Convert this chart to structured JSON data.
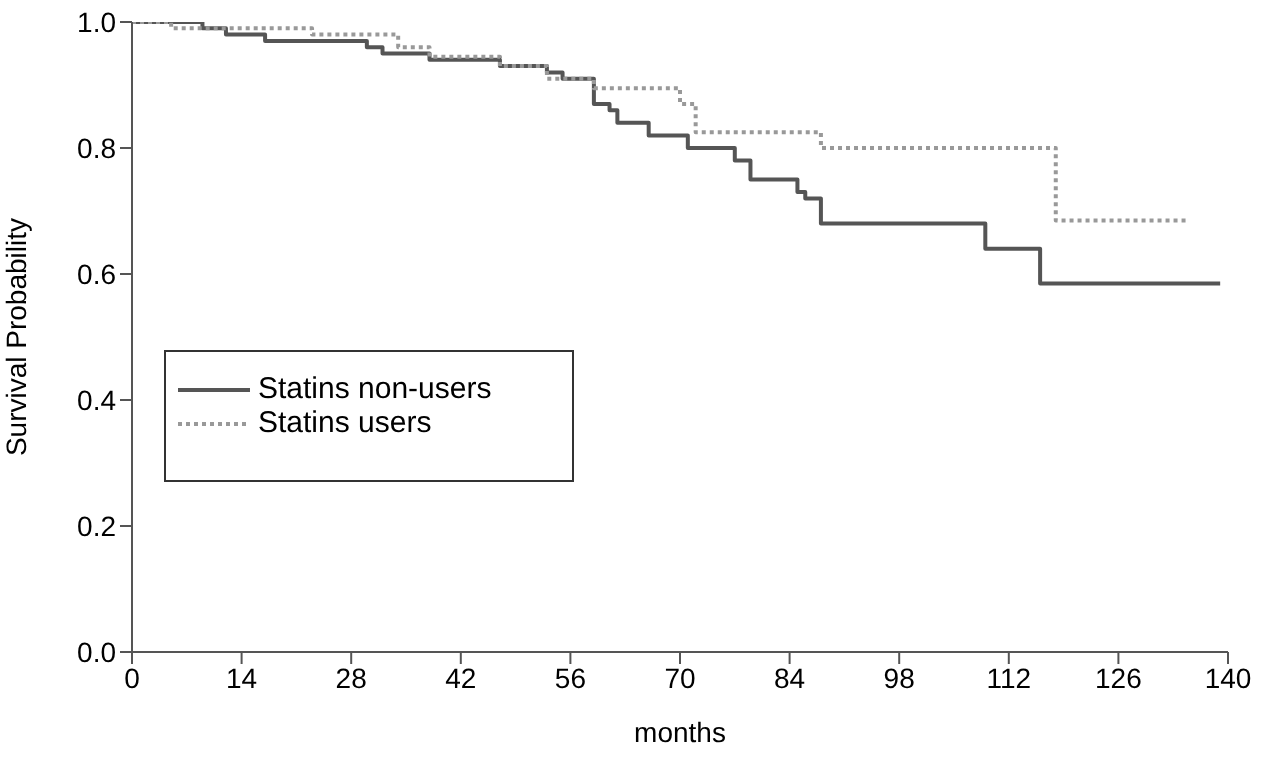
{
  "chart_data": {
    "type": "step",
    "xlabel": "months",
    "ylabel": "Survival Probability",
    "xlim": [
      0,
      140
    ],
    "xticks": [
      0,
      14,
      28,
      42,
      56,
      70,
      84,
      98,
      112,
      126,
      140
    ],
    "ylim": [
      0,
      1
    ],
    "yticks": [
      {
        "value": 0,
        "label": "0.0"
      },
      {
        "value": 0.2,
        "label": "0.2"
      },
      {
        "value": 0.4,
        "label": "0.4"
      },
      {
        "value": 0.6,
        "label": "0.6"
      },
      {
        "value": 0.8,
        "label": "0.8"
      },
      {
        "value": 1,
        "label": "1.0"
      }
    ],
    "grid": false,
    "legend": "left",
    "marker": "none",
    "series": [
      {
        "name": "Statins non-users",
        "color": "#555555",
        "line_style": "solid",
        "x": [
          0,
          9,
          12,
          17,
          30,
          32,
          38,
          47,
          53,
          55,
          59,
          61,
          62,
          66,
          71,
          77,
          79,
          85,
          86,
          88,
          109,
          116,
          139
        ],
        "values": [
          1,
          0.99,
          0.98,
          0.97,
          0.96,
          0.95,
          0.94,
          0.93,
          0.92,
          0.91,
          0.87,
          0.86,
          0.84,
          0.82,
          0.8,
          0.78,
          0.75,
          0.73,
          0.72,
          0.68,
          0.64,
          0.585,
          0.585
        ]
      },
      {
        "name": "Statins users",
        "color": "#999999",
        "line_style": "dotted",
        "x": [
          0,
          5,
          23,
          34,
          38,
          47,
          53,
          59,
          70,
          72,
          88,
          118,
          135
        ],
        "values": [
          1,
          0.99,
          0.98,
          0.96,
          0.945,
          0.93,
          0.91,
          0.895,
          0.87,
          0.825,
          0.8,
          0.685,
          0.685
        ]
      }
    ]
  }
}
